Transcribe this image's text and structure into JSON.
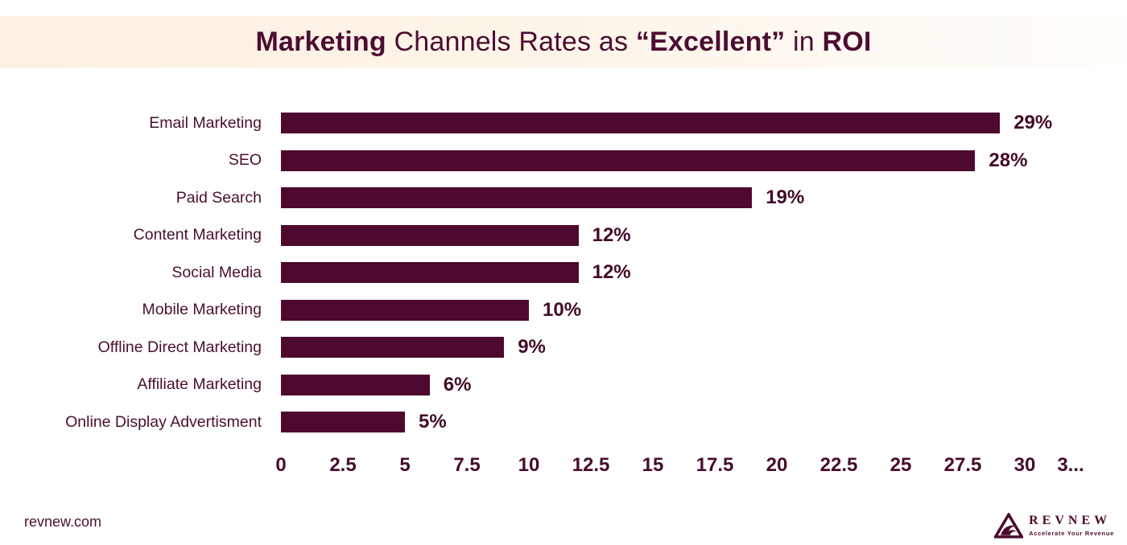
{
  "header": {
    "title_segments": [
      {
        "text": "Marketing ",
        "bold": true
      },
      {
        "text": "Channels Rates as ",
        "bold": false
      },
      {
        "text": "“Excellent” ",
        "bold": true
      },
      {
        "text": "in ",
        "bold": false
      },
      {
        "text": "ROI",
        "bold": true
      }
    ],
    "title_color": "#4d0c31",
    "strip_gradient_left": "#fcf0e1",
    "strip_gradient_right": "#fffefc"
  },
  "chart_data": {
    "type": "bar",
    "orientation": "horizontal",
    "title": "Marketing Channels Rates as “Excellent” in ROI",
    "categories": [
      "Email Marketing",
      "SEO",
      "Paid Search",
      "Content Marketing",
      "Social Media",
      "Mobile Marketing",
      "Offline Direct Marketing",
      "Affiliate Marketing",
      "Online Display Advertisment"
    ],
    "values": [
      29,
      28,
      19,
      12,
      12,
      10,
      9,
      6,
      5
    ],
    "value_labels": [
      "29%",
      "28%",
      "19%",
      "12%",
      "12%",
      "10%",
      "9%",
      "6%",
      "5%"
    ],
    "x_ticks": [
      "0",
      "2.5",
      "5",
      "7.5",
      "10",
      "12.5",
      "15",
      "17.5",
      "20",
      "22.5",
      "25",
      "27.5",
      "30",
      "3..."
    ],
    "xlim": [
      0,
      32.5
    ],
    "xlabel": "",
    "ylabel": "",
    "grid": false,
    "legend": false,
    "bar_color": "#4d0a2e",
    "value_label_color": "#430b28",
    "tick_color": "#470c2b",
    "category_label_color": "#4b0f30"
  },
  "footer": {
    "website": "revnew.com",
    "logo": {
      "name": "REVNEW",
      "tagline": "Accelerate Your Revenue",
      "color": "#4d0a2e"
    }
  }
}
